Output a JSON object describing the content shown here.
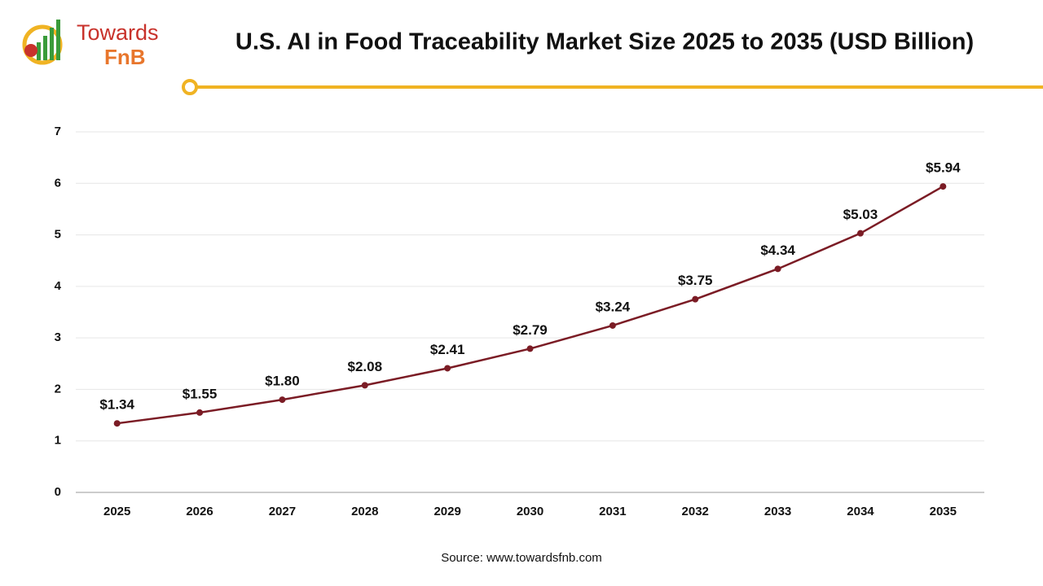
{
  "chart_data": {
    "type": "line",
    "title": "U.S. AI in Food Traceability Market Size 2025 to 2035 (USD Billion)",
    "logo_text": [
      "Towards",
      "FnB"
    ],
    "source": "Source: www.towardsfnb.com",
    "categories": [
      "2025",
      "2026",
      "2027",
      "2028",
      "2029",
      "2030",
      "2031",
      "2032",
      "2033",
      "2034",
      "2035"
    ],
    "values": [
      1.34,
      1.55,
      1.8,
      2.08,
      2.41,
      2.79,
      3.24,
      3.75,
      4.34,
      5.03,
      5.94
    ],
    "value_labels": [
      "$1.34",
      "$1.55",
      "$1.80",
      "$2.08",
      "$2.41",
      "$2.79",
      "$3.24",
      "$3.75",
      "$4.34",
      "$5.03",
      "$5.94"
    ],
    "color": "#7b1c25",
    "ylim": [
      0,
      7
    ],
    "yticks": [
      0,
      1,
      2,
      3,
      4,
      5,
      6,
      7
    ],
    "grid": true
  }
}
